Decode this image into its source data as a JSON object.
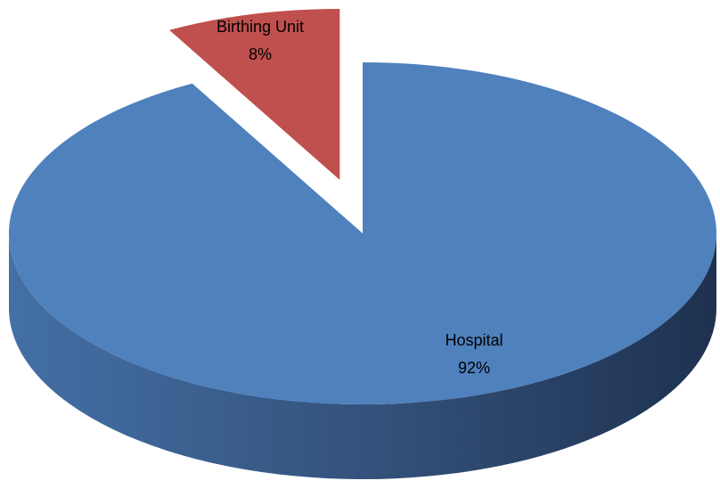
{
  "chart_data": {
    "type": "pie3d",
    "categories": [
      "Hospital",
      "Birthing Unit"
    ],
    "values": [
      92,
      8
    ],
    "value_labels": [
      "92%",
      "8%"
    ],
    "colors": [
      "#4f81bd",
      "#c0504d"
    ],
    "exploded": [
      false,
      true
    ]
  }
}
